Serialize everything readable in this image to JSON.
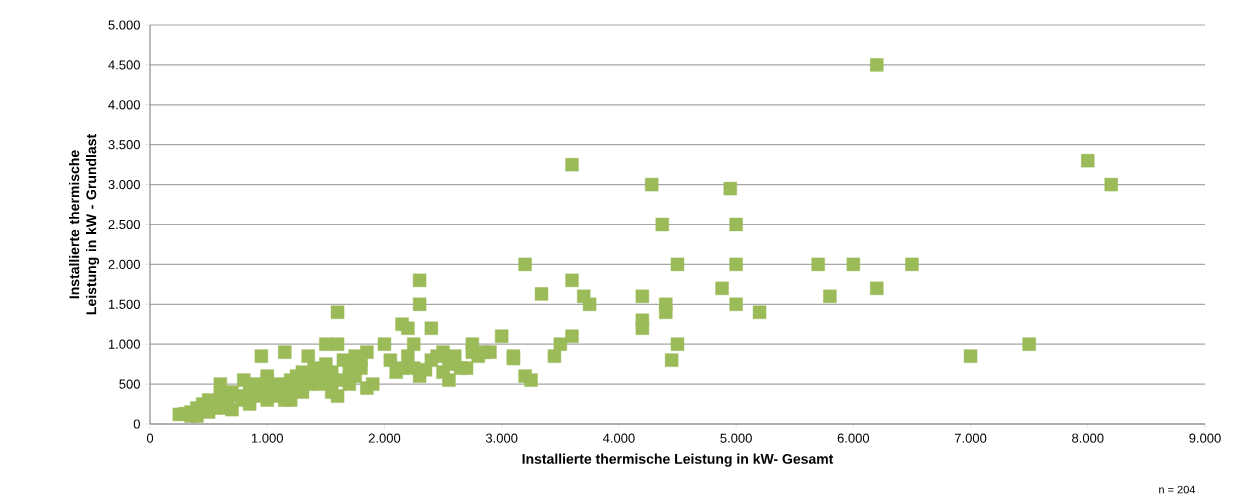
{
  "chart_data": {
    "type": "scatter",
    "xlabel": "Installierte thermische Leistung in kW- Gesamt",
    "ylabel": "Installierte thermische Leistung in kW - Grundlast",
    "annotations": [
      "n = 204"
    ],
    "marker": "square",
    "grid": "y",
    "color": "#9bbb59",
    "xlim": [
      0,
      9000
    ],
    "ylim": [
      0,
      5000
    ],
    "xticks": [
      0,
      {
        "value": 1000,
        "label": "1.000"
      },
      {
        "value": 2000,
        "label": "2.000"
      },
      {
        "value": 3000,
        "label": "3.000"
      },
      {
        "value": 4000,
        "label": "4.000"
      },
      {
        "value": 5000,
        "label": "5.000"
      },
      {
        "value": 6000,
        "label": "6.000"
      },
      {
        "value": 7000,
        "label": "7.000"
      },
      {
        "value": 8000,
        "label": "8.000"
      },
      {
        "value": 9000,
        "label": "9.000"
      }
    ],
    "yticks": [
      0,
      500,
      {
        "value": 1000,
        "label": "1.000"
      },
      {
        "value": 1500,
        "label": "1.500"
      },
      {
        "value": 2000,
        "label": "2.000"
      },
      {
        "value": 2500,
        "label": "2.500"
      },
      {
        "value": 3000,
        "label": "3.000"
      },
      {
        "value": 3500,
        "label": "3.500"
      },
      {
        "value": 4000,
        "label": "4.000"
      },
      {
        "value": 4500,
        "label": "4.500"
      },
      {
        "value": 5000,
        "label": "5.000"
      }
    ],
    "x": [
      3600,
      4280,
      4950,
      6200,
      8000,
      8200,
      4370,
      5000,
      3200,
      4500,
      5000,
      5700,
      6000,
      6500,
      3600,
      3340,
      3700,
      4200,
      4400,
      4400,
      3750,
      4880,
      5000,
      5200,
      5800,
      6200,
      4200,
      4200,
      3600,
      3500,
      4500,
      3450,
      4450,
      3200,
      3250,
      7000,
      7500,
      3000,
      3100,
      3100,
      2300,
      2300,
      2150,
      2200,
      2400,
      2000,
      2250,
      2750,
      2100,
      2150,
      2200,
      2250,
      2350,
      2400,
      2450,
      2500,
      2500,
      2550,
      2550,
      2600,
      2650,
      2700,
      2750,
      2800,
      2850,
      2900,
      2300,
      2050,
      1600,
      1600,
      1500,
      1150,
      950,
      1350,
      1850,
      1750,
      1650,
      1500,
      1400,
      1300,
      1250,
      1200,
      1100,
      1000,
      900,
      800,
      600,
      700,
      750,
      500,
      450,
      400,
      350,
      250,
      300,
      400,
      500,
      550,
      650,
      700,
      800,
      850,
      900,
      950,
      1000,
      1050,
      1100,
      1150,
      1200,
      1250,
      1350,
      1400,
      1450,
      1550,
      1600,
      1650,
      1700,
      1750,
      1800,
      1850,
      1900,
      1550,
      1450,
      1300,
      1200,
      1000,
      850,
      600,
      650,
      350,
      1550,
      1700,
      1800
    ],
    "values": [
      3250,
      3000,
      2950,
      4500,
      3300,
      3000,
      2500,
      2500,
      2000,
      2000,
      2000,
      2000,
      2000,
      2000,
      1800,
      1630,
      1600,
      1600,
      1500,
      1400,
      1500,
      1700,
      1500,
      1400,
      1600,
      1700,
      1300,
      1200,
      1100,
      1000,
      1000,
      850,
      800,
      600,
      550,
      850,
      1000,
      1100,
      850,
      820,
      1800,
      1500,
      1250,
      1200,
      1200,
      1000,
      1000,
      1000,
      650,
      700,
      850,
      700,
      680,
      800,
      850,
      900,
      650,
      550,
      750,
      850,
      700,
      700,
      900,
      850,
      900,
      900,
      600,
      800,
      1400,
      1000,
      1000,
      900,
      850,
      850,
      900,
      850,
      800,
      750,
      700,
      650,
      600,
      550,
      500,
      550,
      500,
      550,
      500,
      400,
      350,
      300,
      250,
      200,
      150,
      120,
      130,
      100,
      150,
      200,
      250,
      180,
      300,
      400,
      350,
      450,
      600,
      400,
      350,
      300,
      300,
      450,
      500,
      550,
      500,
      400,
      350,
      550,
      500,
      600,
      700,
      450,
      500,
      550,
      600,
      400,
      450,
      300,
      250,
      350,
      200,
      100,
      650,
      700,
      800
    ]
  }
}
